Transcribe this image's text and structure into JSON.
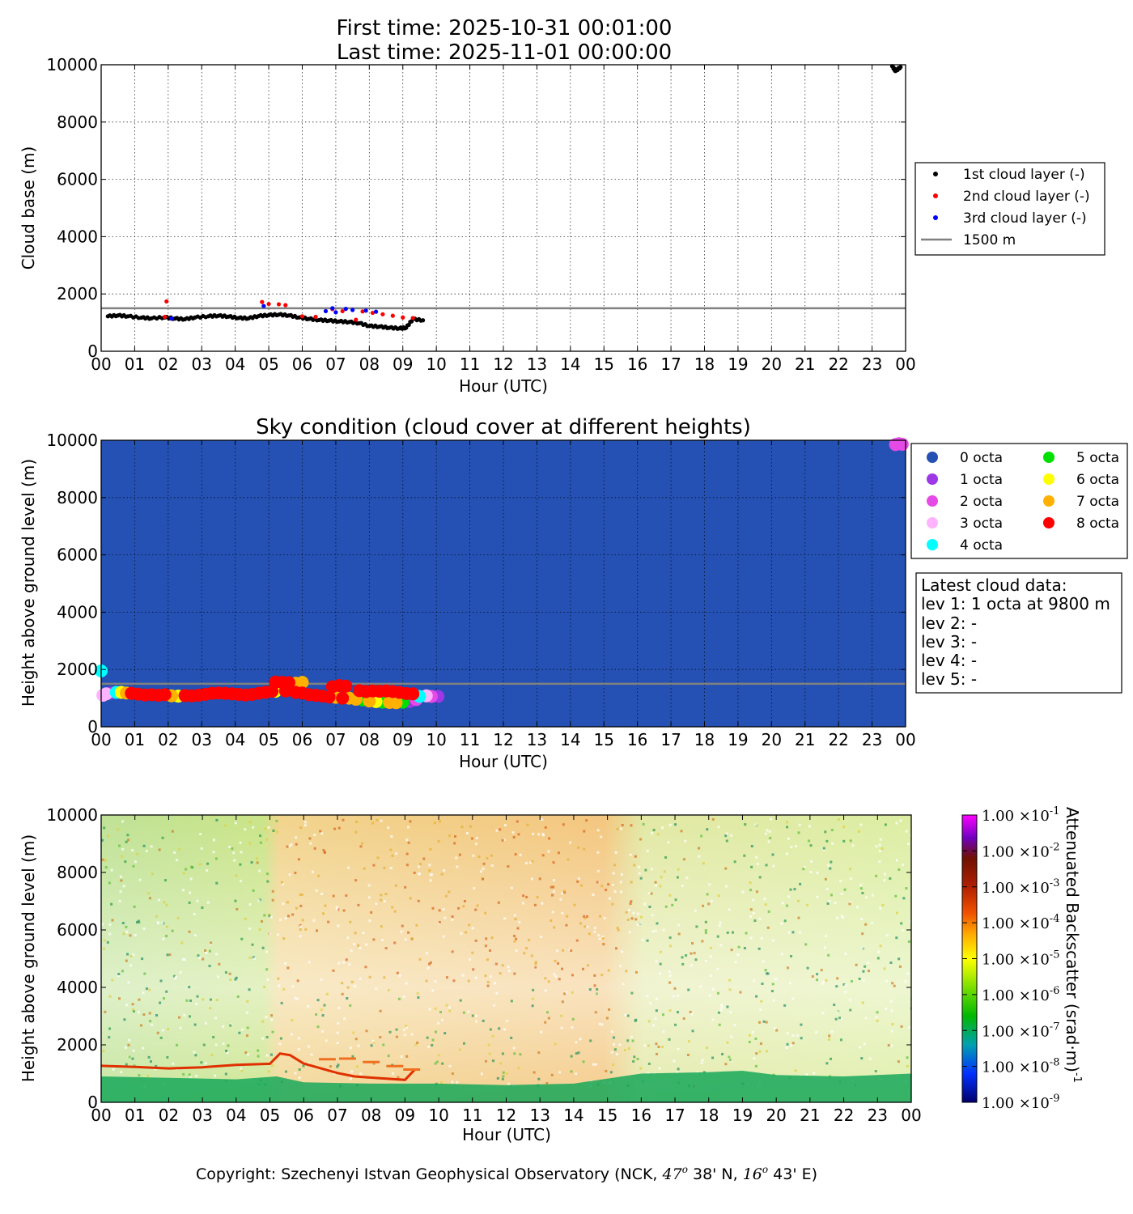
{
  "header": {
    "line1": "First time: 2025-10-31 00:01:00",
    "line2": "Last time: 2025-11-01 00:00:00"
  },
  "hours": [
    "00",
    "01",
    "02",
    "03",
    "04",
    "05",
    "06",
    "07",
    "08",
    "09",
    "10",
    "11",
    "12",
    "13",
    "14",
    "15",
    "16",
    "17",
    "18",
    "19",
    "20",
    "21",
    "22",
    "23",
    "00"
  ],
  "colors": {
    "layer1": "#000000",
    "layer2": "#ff0000",
    "layer3": "#0000ff",
    "line1500": "#808080",
    "sky_bg": "#2451b3",
    "octa": [
      "#2451b3",
      "#9e37e6",
      "#e64ae6",
      "#ffb3ff",
      "#00ffff",
      "#00e000",
      "#ffff00",
      "#ffb000",
      "#ff0000"
    ]
  },
  "chart_data": [
    {
      "type": "scatter",
      "xlabel": "Hour (UTC)",
      "ylabel": "Cloud base (m)",
      "xlim": [
        0,
        24
      ],
      "ylim": [
        0,
        10000
      ],
      "yticks": [
        "0",
        "2000",
        "4000",
        "6000",
        "8000",
        "10000"
      ],
      "grid": true,
      "legend_position": "right",
      "reference_line": {
        "label": "1500 m",
        "y": 1500
      },
      "series": [
        {
          "name": "1st cloud layer (-)",
          "color": "#000000",
          "points": [
            [
              0.2,
              1220
            ],
            [
              0.5,
              1250
            ],
            [
              0.8,
              1220
            ],
            [
              1.2,
              1170
            ],
            [
              1.5,
              1150
            ],
            [
              1.9,
              1180
            ],
            [
              2.2,
              1140
            ],
            [
              2.5,
              1120
            ],
            [
              2.8,
              1180
            ],
            [
              3.2,
              1220
            ],
            [
              3.5,
              1240
            ],
            [
              3.8,
              1210
            ],
            [
              4.1,
              1160
            ],
            [
              4.4,
              1150
            ],
            [
              4.7,
              1230
            ],
            [
              5.0,
              1260
            ],
            [
              5.3,
              1280
            ],
            [
              5.6,
              1250
            ],
            [
              5.9,
              1180
            ],
            [
              6.2,
              1130
            ],
            [
              6.5,
              1090
            ],
            [
              6.8,
              1070
            ],
            [
              7.1,
              1040
            ],
            [
              7.4,
              1020
            ],
            [
              7.7,
              980
            ],
            [
              8.0,
              880
            ],
            [
              8.3,
              860
            ],
            [
              8.6,
              820
            ],
            [
              8.9,
              800
            ],
            [
              9.1,
              820
            ],
            [
              9.3,
              1120
            ],
            [
              9.6,
              1080
            ],
            [
              23.6,
              9950
            ],
            [
              23.7,
              9780
            ],
            [
              23.85,
              9920
            ]
          ]
        },
        {
          "name": "2nd cloud layer (-)",
          "color": "#ff0000",
          "points": [
            [
              1.95,
              1740
            ],
            [
              1.9,
              1200
            ],
            [
              4.8,
              1720
            ],
            [
              5.0,
              1650
            ],
            [
              5.3,
              1640
            ],
            [
              5.5,
              1610
            ],
            [
              6.0,
              1220
            ],
            [
              6.4,
              1200
            ],
            [
              6.9,
              1470
            ],
            [
              7.2,
              1400
            ],
            [
              7.6,
              1100
            ],
            [
              7.8,
              1390
            ],
            [
              8.1,
              1340
            ],
            [
              8.4,
              1290
            ],
            [
              8.7,
              1240
            ],
            [
              9.0,
              1180
            ],
            [
              9.3,
              1160
            ]
          ]
        },
        {
          "name": "3rd cloud layer (-)",
          "color": "#0000ff",
          "points": [
            [
              2.1,
              1140
            ],
            [
              4.85,
              1580
            ],
            [
              6.7,
              1400
            ],
            [
              6.9,
              1500
            ],
            [
              7.0,
              1360
            ],
            [
              7.3,
              1480
            ],
            [
              7.5,
              1440
            ],
            [
              7.9,
              1420
            ],
            [
              8.2,
              1380
            ]
          ]
        }
      ]
    },
    {
      "type": "scatter",
      "title": "Sky condition (cloud cover at different heights)",
      "xlabel": "Hour (UTC)",
      "ylabel": "Height above ground level (m)",
      "xlim": [
        0,
        24
      ],
      "ylim": [
        0,
        10000
      ],
      "yticks": [
        "0",
        "2000",
        "4000",
        "6000",
        "8000",
        "10000"
      ],
      "grid": true,
      "legend_position": "right",
      "reference_line": {
        "y": 1500
      },
      "legend": [
        "0 octa",
        "1 octa",
        "2 octa",
        "3 octa",
        "4 octa",
        "5 octa",
        "6 octa",
        "7 octa",
        "8 octa"
      ],
      "points": [
        [
          0.0,
          1950,
          4
        ],
        [
          0.05,
          1100,
          3
        ],
        [
          0.15,
          1150,
          3
        ],
        [
          0.3,
          1180,
          1
        ],
        [
          0.45,
          1200,
          4
        ],
        [
          0.6,
          1200,
          6
        ],
        [
          0.75,
          1180,
          7
        ],
        [
          0.9,
          1170,
          8
        ],
        [
          1.1,
          1140,
          8
        ],
        [
          1.3,
          1110,
          8
        ],
        [
          1.5,
          1120,
          8
        ],
        [
          1.7,
          1100,
          8
        ],
        [
          1.9,
          1120,
          8
        ],
        [
          2.1,
          1080,
          7
        ],
        [
          2.3,
          1070,
          6
        ],
        [
          2.5,
          1090,
          8
        ],
        [
          2.7,
          1080,
          8
        ],
        [
          2.9,
          1100,
          8
        ],
        [
          3.1,
          1130,
          8
        ],
        [
          3.3,
          1170,
          8
        ],
        [
          3.5,
          1180,
          8
        ],
        [
          3.7,
          1170,
          8
        ],
        [
          3.9,
          1150,
          8
        ],
        [
          4.1,
          1130,
          8
        ],
        [
          4.3,
          1110,
          8
        ],
        [
          4.5,
          1130,
          8
        ],
        [
          4.7,
          1170,
          8
        ],
        [
          4.9,
          1200,
          8
        ],
        [
          5.1,
          1240,
          8
        ],
        [
          5.2,
          1560,
          8
        ],
        [
          5.4,
          1550,
          8
        ],
        [
          5.6,
          1540,
          8
        ],
        [
          5.8,
          1520,
          7
        ],
        [
          6.0,
          1550,
          7
        ],
        [
          5.2,
          1240,
          6
        ],
        [
          5.5,
          1250,
          8
        ],
        [
          5.8,
          1200,
          8
        ],
        [
          6.0,
          1180,
          8
        ],
        [
          6.2,
          1120,
          8
        ],
        [
          6.4,
          1100,
          8
        ],
        [
          6.6,
          1070,
          8
        ],
        [
          6.8,
          1040,
          8
        ],
        [
          6.9,
          1400,
          8
        ],
        [
          7.1,
          1440,
          8
        ],
        [
          7.3,
          1420,
          8
        ],
        [
          7.0,
          1030,
          7
        ],
        [
          7.2,
          1000,
          8
        ],
        [
          7.4,
          1000,
          7
        ],
        [
          7.6,
          960,
          7
        ],
        [
          7.8,
          940,
          5
        ],
        [
          7.7,
          1260,
          8
        ],
        [
          7.9,
          1230,
          8
        ],
        [
          8.1,
          1250,
          8
        ],
        [
          8.3,
          1240,
          8
        ],
        [
          8.5,
          1250,
          8
        ],
        [
          8.7,
          1230,
          8
        ],
        [
          8.9,
          1200,
          8
        ],
        [
          9.1,
          1160,
          8
        ],
        [
          9.3,
          1150,
          8
        ],
        [
          8.0,
          900,
          7
        ],
        [
          8.2,
          880,
          6
        ],
        [
          8.4,
          860,
          5
        ],
        [
          8.6,
          850,
          7
        ],
        [
          8.8,
          840,
          7
        ],
        [
          9.0,
          860,
          5
        ],
        [
          9.2,
          880,
          1
        ],
        [
          9.4,
          950,
          2
        ],
        [
          9.5,
          1060,
          4
        ],
        [
          9.7,
          1080,
          3
        ],
        [
          9.85,
          1060,
          2
        ],
        [
          10.05,
          1060,
          1
        ],
        [
          23.7,
          9850,
          2
        ],
        [
          23.8,
          9880,
          2
        ],
        [
          23.9,
          9860,
          2
        ]
      ],
      "latest_info": {
        "title": "Latest cloud data:",
        "lines": [
          "lev 1: 1 octa at 9800 m",
          "lev 2: -",
          "lev 3: -",
          "lev 4: -",
          "lev 5: -"
        ]
      }
    },
    {
      "type": "heatmap",
      "xlabel": "Hour (UTC)",
      "ylabel": "Height above ground level (m)",
      "xlim": [
        0,
        24
      ],
      "ylim": [
        0,
        10000
      ],
      "yticks": [
        "0",
        "2000",
        "4000",
        "6000",
        "8000",
        "10000"
      ],
      "colorbar_label": "Attenuated Backscatter (srad·m)",
      "colorbar_exponent": "-1",
      "colorbar_ticks": [
        {
          "mant": "1.00",
          "exp": "-1"
        },
        {
          "mant": "1.00",
          "exp": "-2"
        },
        {
          "mant": "1.00",
          "exp": "-3"
        },
        {
          "mant": "1.00",
          "exp": "-4"
        },
        {
          "mant": "1.00",
          "exp": "-5"
        },
        {
          "mant": "1.00",
          "exp": "-6"
        },
        {
          "mant": "1.00",
          "exp": "-7"
        },
        {
          "mant": "1.00",
          "exp": "-8"
        },
        {
          "mant": "1.00",
          "exp": "-9"
        }
      ],
      "colorscale": [
        "#00008a",
        "#0040ff",
        "#00b0a0",
        "#00c000",
        "#90e000",
        "#ffff00",
        "#ffa000",
        "#e03000",
        "#802000",
        "#600000",
        "#6000d0",
        "#ff00ff"
      ],
      "cloud_layer_m": [
        [
          0.0,
          1270
        ],
        [
          1.0,
          1230
        ],
        [
          2.0,
          1180
        ],
        [
          3.0,
          1220
        ],
        [
          4.0,
          1300
        ],
        [
          5.0,
          1340
        ],
        [
          5.3,
          1700
        ],
        [
          5.6,
          1640
        ],
        [
          6.0,
          1350
        ],
        [
          7.0,
          1020
        ],
        [
          7.5,
          900
        ],
        [
          8.0,
          860
        ],
        [
          9.0,
          780
        ],
        [
          9.3,
          1150
        ]
      ],
      "secondary_layers_m": [
        [
          6.7,
          1500
        ],
        [
          7.3,
          1520
        ],
        [
          8.0,
          1400
        ],
        [
          8.7,
          1260
        ],
        [
          9.2,
          1140
        ]
      ]
    }
  ],
  "footer": {
    "copyright_prefix": "Copyright: Szechenyi Istvan Geophysical Observatory (NCK, ",
    "lat_deg": "47",
    "lat_min": " 38' N, ",
    "lon_deg": "16",
    "lon_min": " 43' E)",
    "degree_mark": "o"
  }
}
